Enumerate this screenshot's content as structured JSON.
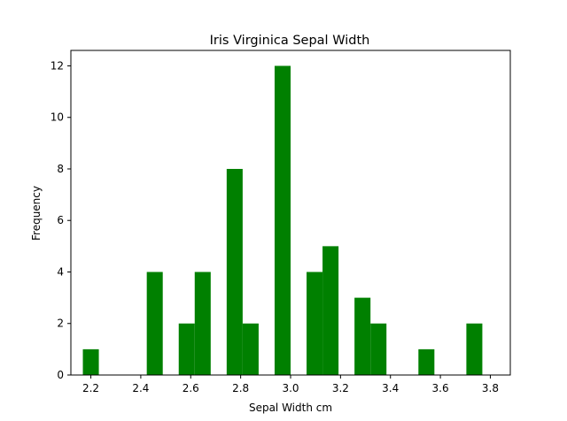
{
  "chart_data": {
    "type": "bar",
    "title": "Iris Virginica Sepal Width",
    "xlabel": "Sepal Width cm",
    "ylabel": "Frequency",
    "xlim": [
      2.12,
      3.88
    ],
    "ylim": [
      0,
      12.6
    ],
    "bin_width": 0.064,
    "xticks": [
      2.2,
      2.4,
      2.6,
      2.8,
      3.0,
      3.2,
      3.4,
      3.6,
      3.8
    ],
    "xtick_labels": [
      "2.2",
      "2.4",
      "2.6",
      "2.8",
      "3.0",
      "3.2",
      "3.4",
      "3.6",
      "3.8"
    ],
    "yticks": [
      0,
      2,
      4,
      6,
      8,
      10,
      12
    ],
    "ytick_labels": [
      "0",
      "2",
      "4",
      "6",
      "8",
      "10",
      "12"
    ],
    "bar_color": "#008000",
    "grid": false,
    "bins": [
      {
        "x": 2.2,
        "count": 1
      },
      {
        "x": 2.264,
        "count": 0
      },
      {
        "x": 2.328,
        "count": 0
      },
      {
        "x": 2.392,
        "count": 0
      },
      {
        "x": 2.456,
        "count": 4
      },
      {
        "x": 2.52,
        "count": 0
      },
      {
        "x": 2.584,
        "count": 2
      },
      {
        "x": 2.648,
        "count": 4
      },
      {
        "x": 2.712,
        "count": 0
      },
      {
        "x": 2.776,
        "count": 8
      },
      {
        "x": 2.84,
        "count": 2
      },
      {
        "x": 2.904,
        "count": 0
      },
      {
        "x": 2.968,
        "count": 12
      },
      {
        "x": 3.032,
        "count": 0
      },
      {
        "x": 3.096,
        "count": 4
      },
      {
        "x": 3.16,
        "count": 5
      },
      {
        "x": 3.224,
        "count": 0
      },
      {
        "x": 3.288,
        "count": 3
      },
      {
        "x": 3.352,
        "count": 2
      },
      {
        "x": 3.416,
        "count": 0
      },
      {
        "x": 3.48,
        "count": 0
      },
      {
        "x": 3.544,
        "count": 1
      },
      {
        "x": 3.608,
        "count": 0
      },
      {
        "x": 3.672,
        "count": 0
      },
      {
        "x": 3.736,
        "count": 2
      }
    ]
  }
}
